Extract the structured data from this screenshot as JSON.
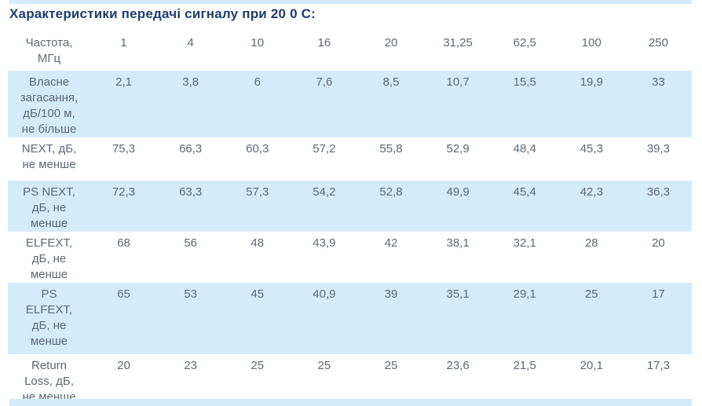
{
  "title": "Характеристики передачі сигналу при 20 0 С:",
  "colors": {
    "row_highlight": "#d4ebfb",
    "title_text": "#1f3d6d",
    "body_text": "#5d6874"
  },
  "chart_data": {
    "type": "table",
    "title": "Характеристики передачі сигналу при 20 0 С:",
    "columns": [
      "Частота, МГц",
      "1",
      "4",
      "10",
      "16",
      "20",
      "31,25",
      "62,5",
      "100",
      "250"
    ],
    "rows": [
      {
        "label": "Власне загасання, дБ/100 м, не більше",
        "values": [
          "2,1",
          "3,8",
          "6",
          "7,6",
          "8,5",
          "10,7",
          "15,5",
          "19,9",
          "33"
        ]
      },
      {
        "label": "NEXT, дБ, не менше",
        "values": [
          "75,3",
          "66,3",
          "60,3",
          "57,2",
          "55,8",
          "52,9",
          "48,4",
          "45,3",
          "39,3"
        ]
      },
      {
        "label": "PS NEXT, дБ, не менше",
        "values": [
          "72,3",
          "63,3",
          "57,3",
          "54,2",
          "52,8",
          "49,9",
          "45,4",
          "42,3",
          "36,3"
        ]
      },
      {
        "label": "ELFEXT, дБ, не менше",
        "values": [
          "68",
          "56",
          "48",
          "43,9",
          "42",
          "38,1",
          "32,1",
          "28",
          "20"
        ]
      },
      {
        "label": "PS ELFEXT, дБ, не менше",
        "values": [
          "65",
          "53",
          "45",
          "40,9",
          "39",
          "35,1",
          "29,1",
          "25",
          "17"
        ]
      },
      {
        "label": "Return Loss, дБ, не менше",
        "values": [
          "20",
          "23",
          "25",
          "25",
          "25",
          "23,6",
          "21,5",
          "20,1",
          "17,3"
        ]
      }
    ]
  }
}
